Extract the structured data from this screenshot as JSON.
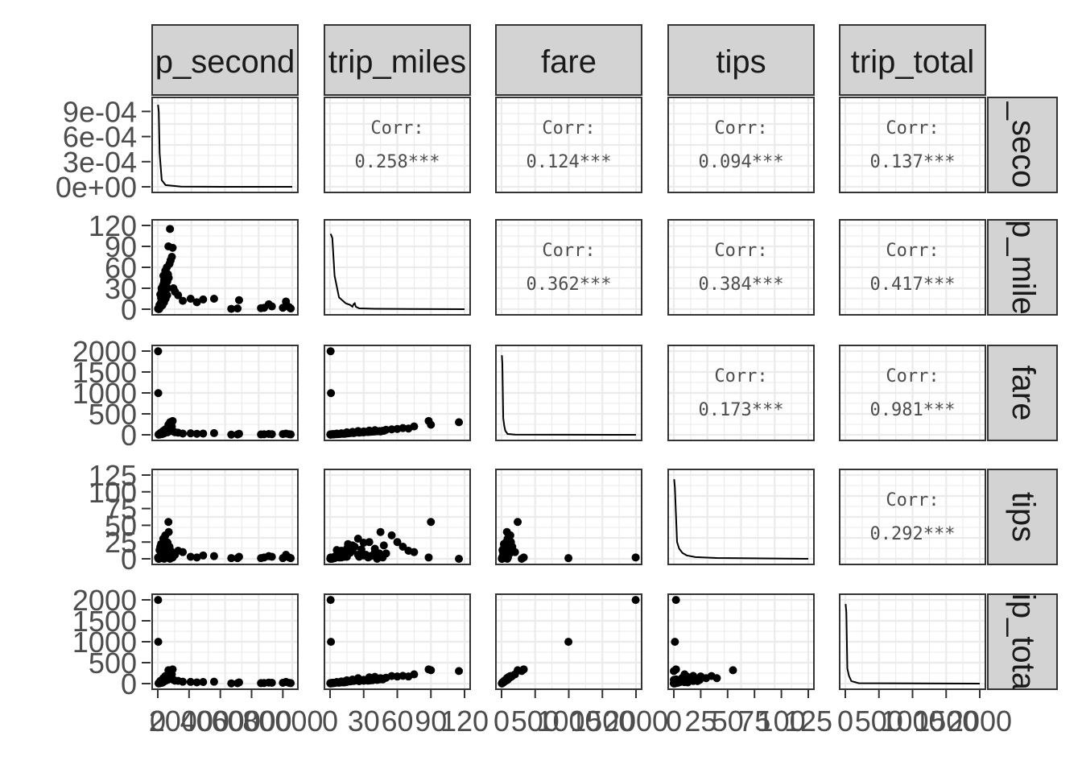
{
  "chart_data": {
    "type": "scatter",
    "variables": [
      "trip_seconds",
      "trip_miles",
      "fare",
      "tips",
      "trip_total"
    ],
    "strip_labels_top": [
      "p_second",
      "trip_miles",
      "fare",
      "tips",
      "trip_total"
    ],
    "strip_labels_right": [
      "_seco",
      "p_mile",
      "fare",
      "tips",
      "ip_tota"
    ],
    "ranges": [
      [
        0,
        86000
      ],
      [
        0,
        120
      ],
      [
        0,
        2000
      ],
      [
        0,
        125
      ],
      [
        0,
        2000
      ]
    ],
    "density_range": [
      0,
      0.001
    ],
    "x_axis_ticks": [
      [
        0,
        20000,
        40000,
        60000,
        80000
      ],
      [
        0,
        30,
        60,
        90,
        120
      ],
      [
        0,
        500,
        1000,
        1500,
        2000
      ],
      [
        0,
        25,
        50,
        75,
        100,
        125
      ],
      [
        0,
        500,
        1000,
        1500,
        2000
      ]
    ],
    "x_axis_tick_labels": [
      [
        "0",
        "20000",
        "40000",
        "60000",
        "80000"
      ],
      [
        "0",
        "30",
        "60",
        "90",
        "120"
      ],
      [
        "0",
        "500",
        "1000",
        "1500",
        "2000"
      ],
      [
        "0",
        "25",
        "50",
        "75",
        "100",
        "125"
      ],
      [
        "0",
        "500",
        "1000",
        "1500",
        "2000"
      ]
    ],
    "y_axis_ticks": [
      [
        0,
        0.0003,
        0.0006,
        0.0009
      ],
      [
        0,
        30,
        60,
        90,
        120
      ],
      [
        0,
        500,
        1000,
        1500,
        2000
      ],
      [
        0,
        25,
        50,
        75,
        100,
        125
      ],
      [
        0,
        500,
        1000,
        1500,
        2000
      ]
    ],
    "y_axis_tick_labels": [
      [
        "0e+00",
        "3e-04",
        "6e-04",
        "9e-04"
      ],
      [
        "0",
        "30",
        "60",
        "90",
        "120"
      ],
      [
        "0",
        "500",
        "1000",
        "1500",
        "2000"
      ],
      [
        "0",
        "25",
        "50",
        "75",
        "100",
        "125"
      ],
      [
        "0",
        "500",
        "1000",
        "1500",
        "2000"
      ]
    ],
    "correlations": [
      {
        "row": 0,
        "col": 1,
        "label": "Corr:",
        "value": "0.258***"
      },
      {
        "row": 0,
        "col": 2,
        "label": "Corr:",
        "value": "0.124***"
      },
      {
        "row": 0,
        "col": 3,
        "label": "Corr:",
        "value": "0.094***"
      },
      {
        "row": 0,
        "col": 4,
        "label": "Corr:",
        "value": "0.137***"
      },
      {
        "row": 1,
        "col": 2,
        "label": "Corr:",
        "value": "0.362***"
      },
      {
        "row": 1,
        "col": 3,
        "label": "Corr:",
        "value": "0.384***"
      },
      {
        "row": 1,
        "col": 4,
        "label": "Corr:",
        "value": "0.417***"
      },
      {
        "row": 2,
        "col": 3,
        "label": "Corr:",
        "value": "0.173***"
      },
      {
        "row": 2,
        "col": 4,
        "label": "Corr:",
        "value": "0.981***"
      },
      {
        "row": 3,
        "col": 4,
        "label": "Corr:",
        "value": "0.292***"
      }
    ],
    "densities": [
      {
        "var": 0,
        "points": [
          [
            150,
            0.00098
          ],
          [
            600,
            0.0009
          ],
          [
            1200,
            0.0004
          ],
          [
            2500,
            8e-05
          ],
          [
            5000,
            2e-05
          ],
          [
            15000,
            3e-06
          ],
          [
            40000,
            0
          ],
          [
            86000,
            0
          ]
        ]
      },
      {
        "var": 1,
        "points": [
          [
            0.5,
            0.0009
          ],
          [
            2,
            0.00085
          ],
          [
            4,
            0.0004
          ],
          [
            8,
            0.00014
          ],
          [
            14,
            7e-05
          ],
          [
            18,
            5e-05
          ],
          [
            20,
            3e-05
          ],
          [
            21,
            6e-05
          ],
          [
            22,
            7e-05
          ],
          [
            23,
            3e-05
          ],
          [
            26,
            1e-05
          ],
          [
            40,
            5e-06
          ],
          [
            120,
            0
          ]
        ]
      },
      {
        "var": 2,
        "points": [
          [
            5,
            0.00095
          ],
          [
            12,
            0.00085
          ],
          [
            25,
            0.0002
          ],
          [
            40,
            0.00011
          ],
          [
            55,
            5e-05
          ],
          [
            90,
            1e-05
          ],
          [
            200,
            3e-06
          ],
          [
            2000,
            0
          ]
        ]
      },
      {
        "var": 3,
        "points": [
          [
            0.3,
            0.00095
          ],
          [
            1,
            0.00085
          ],
          [
            3,
            0.0002
          ],
          [
            5,
            0.00012
          ],
          [
            8,
            7e-05
          ],
          [
            12,
            4e-05
          ],
          [
            20,
            2e-05
          ],
          [
            40,
            1e-05
          ],
          [
            125,
            0
          ]
        ]
      },
      {
        "var": 4,
        "points": [
          [
            5,
            0.00095
          ],
          [
            15,
            0.00085
          ],
          [
            30,
            0.00018
          ],
          [
            55,
            9e-05
          ],
          [
            90,
            3e-05
          ],
          [
            200,
            5e-06
          ],
          [
            2000,
            0
          ]
        ]
      }
    ],
    "records": [
      [
        200,
        0.5,
        1995,
        2,
        1998
      ],
      [
        300,
        0.8,
        995,
        1,
        998
      ],
      [
        900,
        0.3,
        12,
        1,
        14
      ],
      [
        500,
        1,
        8,
        0,
        9
      ],
      [
        1500,
        3,
        15,
        2,
        18
      ],
      [
        2500,
        5,
        20,
        4,
        25
      ],
      [
        3000,
        6,
        30,
        6,
        38
      ],
      [
        1200,
        2,
        10,
        1,
        12
      ],
      [
        4000,
        10,
        35,
        12,
        50
      ],
      [
        5000,
        15,
        60,
        15,
        80
      ],
      [
        6000,
        20,
        70,
        20,
        95
      ],
      [
        3500,
        25,
        90,
        30,
        130
      ],
      [
        4500,
        35,
        100,
        25,
        150
      ],
      [
        5500,
        40,
        110,
        10,
        160
      ],
      [
        7000,
        45,
        80,
        40,
        130
      ],
      [
        6500,
        50,
        120,
        8,
        140
      ],
      [
        3200,
        12,
        25,
        3,
        30
      ],
      [
        2800,
        8,
        18,
        2,
        21
      ],
      [
        1800,
        4,
        12,
        1,
        14
      ],
      [
        800,
        2,
        7,
        0,
        8
      ],
      [
        2200,
        18,
        40,
        9,
        52
      ],
      [
        3800,
        28,
        60,
        14,
        78
      ],
      [
        5200,
        32,
        70,
        6,
        80
      ],
      [
        4200,
        22,
        50,
        18,
        70
      ],
      [
        4800,
        55,
        130,
        35,
        180
      ],
      [
        5800,
        60,
        140,
        25,
        170
      ],
      [
        7500,
        65,
        160,
        18,
        185
      ],
      [
        8200,
        70,
        150,
        12,
        170
      ],
      [
        6800,
        90,
        240,
        55,
        320
      ],
      [
        7800,
        115,
        300,
        0,
        300
      ],
      [
        9000,
        75,
        200,
        10,
        220
      ],
      [
        10000,
        30,
        80,
        5,
        90
      ],
      [
        9500,
        88,
        330,
        2,
        340
      ],
      [
        11000,
        25,
        60,
        6,
        70
      ],
      [
        13000,
        20,
        50,
        12,
        65
      ],
      [
        16000,
        12,
        30,
        10,
        45
      ],
      [
        21000,
        15,
        35,
        3,
        40
      ],
      [
        25000,
        10,
        25,
        2,
        30
      ],
      [
        29000,
        14,
        30,
        5,
        38
      ],
      [
        36000,
        15,
        40,
        4,
        45
      ],
      [
        47000,
        0.5,
        5,
        1,
        6
      ],
      [
        51000,
        1,
        8,
        1,
        10
      ],
      [
        52000,
        13,
        25,
        3,
        30
      ],
      [
        66000,
        1.5,
        9,
        1,
        11
      ],
      [
        68000,
        2,
        12,
        2,
        15
      ],
      [
        71000,
        7,
        20,
        4,
        25
      ],
      [
        73000,
        4,
        15,
        3,
        20
      ],
      [
        80000,
        2,
        18,
        1,
        20
      ],
      [
        82000,
        11,
        30,
        6,
        40
      ],
      [
        84000,
        3,
        14,
        2,
        18
      ],
      [
        85000,
        1,
        10,
        1,
        12
      ],
      [
        600,
        0.2,
        5,
        0,
        6
      ],
      [
        1100,
        6,
        14,
        13,
        30
      ],
      [
        1900,
        9,
        22,
        10,
        35
      ],
      [
        2600,
        26,
        55,
        6,
        63
      ],
      [
        3300,
        34,
        65,
        2,
        70
      ],
      [
        4100,
        42,
        85,
        0,
        88
      ],
      [
        5900,
        47,
        95,
        2,
        100
      ],
      [
        6300,
        30,
        60,
        24,
        90
      ],
      [
        2100,
        16,
        35,
        22,
        60
      ],
      [
        1600,
        21,
        40,
        18,
        62
      ],
      [
        3900,
        38,
        75,
        5,
        82
      ],
      [
        4400,
        26,
        52,
        3,
        58
      ],
      [
        6100,
        40,
        80,
        15,
        100
      ],
      [
        3600,
        48,
        95,
        20,
        120
      ],
      [
        2400,
        30,
        60,
        6,
        68
      ],
      [
        5300,
        36,
        72,
        4,
        78
      ],
      [
        4600,
        44,
        88,
        8,
        100
      ]
    ]
  }
}
